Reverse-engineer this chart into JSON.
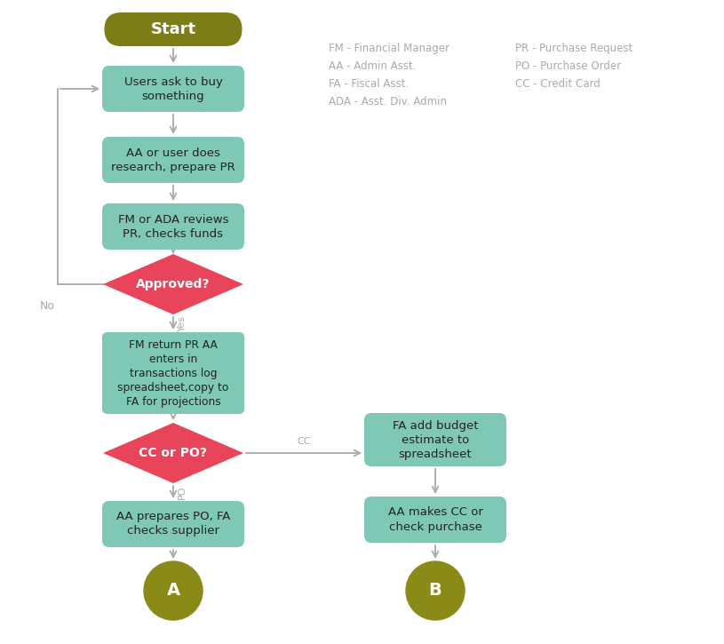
{
  "bg_color": "#ffffff",
  "start_color": "#7d7d18",
  "box_color": "#7ec8b5",
  "diamond_color": "#e8445a",
  "terminal_color": "#8a8a18",
  "arrow_color": "#aaaaaa",
  "text_color_white": "#ffffff",
  "text_color_dark": "#222222",
  "text_color_legend": "#aaaaaa",
  "legend_left": [
    "FM - Financial Manager",
    "AA - Admin Asst.",
    "FA - Fiscal Asst.",
    "ADA - Asst. Div. Admin"
  ],
  "legend_right": [
    "PR - Purchase Request",
    "PO - Purchase Order",
    "CC - Credit Card"
  ],
  "figw": 8.15,
  "figh": 7.25,
  "dpi": 100
}
